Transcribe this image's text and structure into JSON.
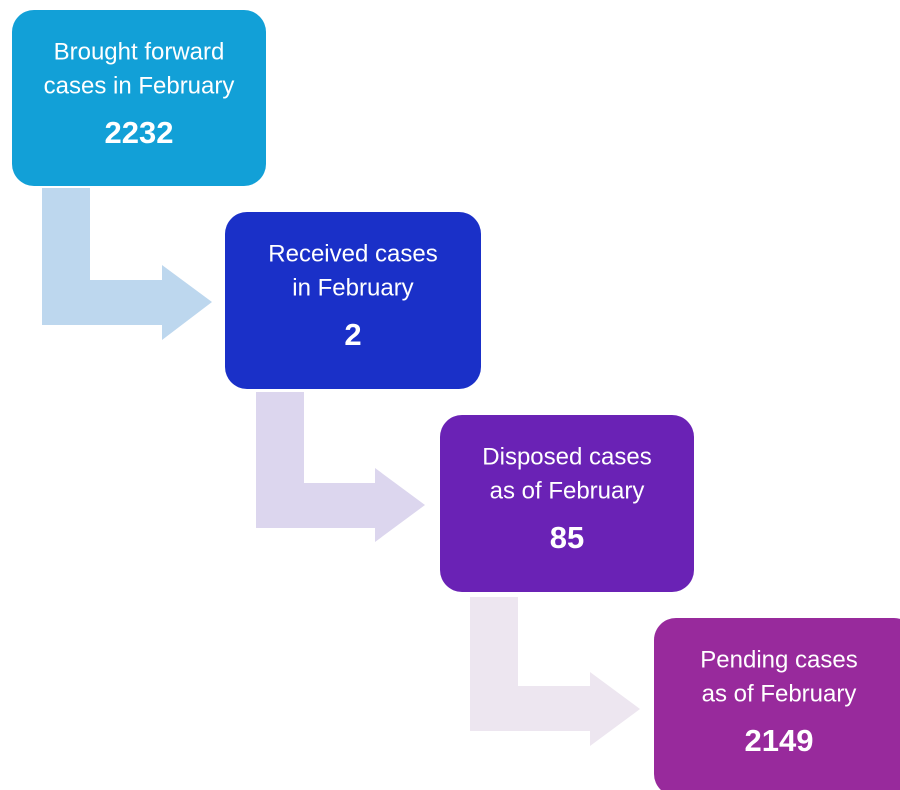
{
  "nodes": [
    {
      "label": [
        "Brought forward",
        "cases in February"
      ],
      "value": 2232
    },
    {
      "label": [
        "Received cases",
        "in February"
      ],
      "value": 2
    },
    {
      "label": [
        "Disposed cases",
        "as of February"
      ],
      "value": 85
    },
    {
      "label": [
        "Pending cases",
        "as of February"
      ],
      "value": 2149
    }
  ]
}
